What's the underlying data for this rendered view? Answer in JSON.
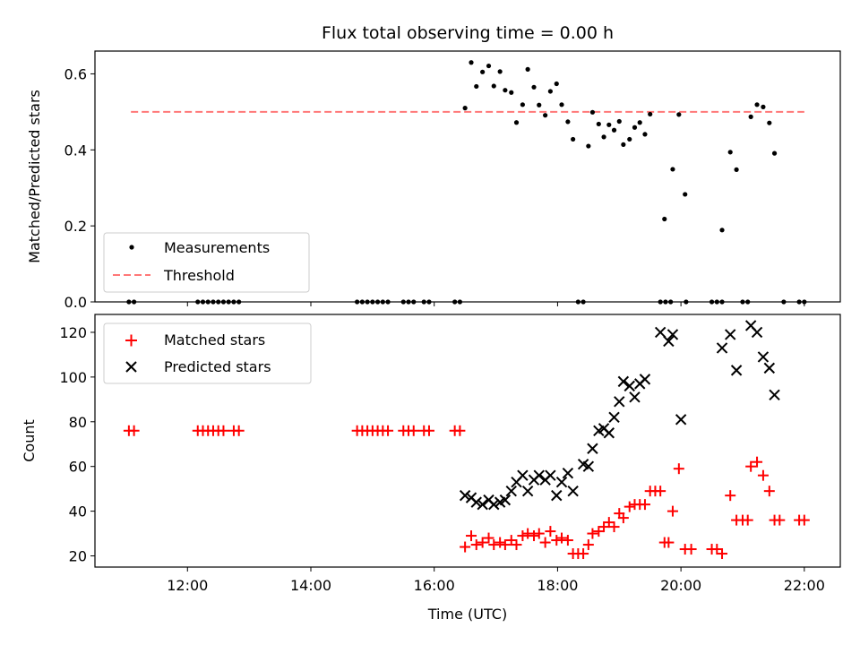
{
  "chart_data": [
    {
      "type": "scatter",
      "title": "Flux total observing time = 0.00 h",
      "xlabel": "",
      "ylabel": "Matched/Predicted stars",
      "xlim": [
        "10:30",
        "22:35"
      ],
      "ylim": [
        0,
        0.66
      ],
      "yticks": [
        0.0,
        0.2,
        0.4,
        0.6
      ],
      "ytick_labels": [
        "0.0",
        "0.2",
        "0.4",
        "0.6"
      ],
      "legend_position": "lower-left",
      "grid": false,
      "series": [
        {
          "name": "Measurements",
          "marker": "dot",
          "color": "#000000",
          "points": [
            [
              "11:03",
              0.0
            ],
            [
              "11:08",
              0.0
            ],
            [
              "12:10",
              0.0
            ],
            [
              "12:15",
              0.0
            ],
            [
              "12:20",
              0.0
            ],
            [
              "12:25",
              0.0
            ],
            [
              "12:30",
              0.0
            ],
            [
              "12:35",
              0.0
            ],
            [
              "12:40",
              0.0
            ],
            [
              "12:45",
              0.0
            ],
            [
              "12:50",
              0.0
            ],
            [
              "14:45",
              0.0
            ],
            [
              "14:50",
              0.0
            ],
            [
              "14:55",
              0.0
            ],
            [
              "15:00",
              0.0
            ],
            [
              "15:05",
              0.0
            ],
            [
              "15:10",
              0.0
            ],
            [
              "15:15",
              0.0
            ],
            [
              "15:30",
              0.0
            ],
            [
              "15:35",
              0.0
            ],
            [
              "15:40",
              0.0
            ],
            [
              "15:50",
              0.0
            ],
            [
              "15:55",
              0.0
            ],
            [
              "16:20",
              0.0
            ],
            [
              "16:25",
              0.0
            ],
            [
              "16:30",
              0.51
            ],
            [
              "16:36",
              0.63
            ],
            [
              "16:41",
              0.567
            ],
            [
              "16:47",
              0.605
            ],
            [
              "16:53",
              0.621
            ],
            [
              "16:58",
              0.568
            ],
            [
              "17:04",
              0.606
            ],
            [
              "17:09",
              0.557
            ],
            [
              "17:15",
              0.551
            ],
            [
              "17:20",
              0.472
            ],
            [
              "17:26",
              0.519
            ],
            [
              "17:31",
              0.612
            ],
            [
              "17:37",
              0.565
            ],
            [
              "17:42",
              0.518
            ],
            [
              "17:48",
              0.491
            ],
            [
              "17:53",
              0.554
            ],
            [
              "17:59",
              0.574
            ],
            [
              "18:04",
              0.519
            ],
            [
              "18:10",
              0.474
            ],
            [
              "18:15",
              0.428
            ],
            [
              "18:20",
              0.0
            ],
            [
              "18:25",
              0.0
            ],
            [
              "18:30",
              0.41
            ],
            [
              "18:34",
              0.499
            ],
            [
              "18:40",
              0.468
            ],
            [
              "18:45",
              0.434
            ],
            [
              "18:50",
              0.466
            ],
            [
              "18:55",
              0.452
            ],
            [
              "19:00",
              0.475
            ],
            [
              "19:04",
              0.414
            ],
            [
              "19:10",
              0.428
            ],
            [
              "19:15",
              0.459
            ],
            [
              "19:20",
              0.472
            ],
            [
              "19:25",
              0.441
            ],
            [
              "19:30",
              0.494
            ],
            [
              "19:40",
              0.0
            ],
            [
              "19:45",
              0.0
            ],
            [
              "19:50",
              0.0
            ],
            [
              "19:44",
              0.218
            ],
            [
              "19:52",
              0.349
            ],
            [
              "19:58",
              0.493
            ],
            [
              "20:04",
              0.283
            ],
            [
              "20:05",
              0.0
            ],
            [
              "20:30",
              0.0
            ],
            [
              "20:35",
              0.0
            ],
            [
              "20:40",
              0.0
            ],
            [
              "20:40",
              0.189
            ],
            [
              "20:48",
              0.394
            ],
            [
              "20:54",
              0.348
            ],
            [
              "21:00",
              0.0
            ],
            [
              "21:05",
              0.0
            ],
            [
              "21:08",
              0.487
            ],
            [
              "21:14",
              0.519
            ],
            [
              "21:20",
              0.513
            ],
            [
              "21:26",
              0.471
            ],
            [
              "21:31",
              0.391
            ],
            [
              "21:40",
              0.0
            ],
            [
              "21:55",
              0.0
            ],
            [
              "22:00",
              0.0
            ]
          ]
        },
        {
          "name": "Threshold",
          "style": "dashed",
          "color": "#ff7777",
          "points": [
            [
              "11:05",
              0.5
            ],
            [
              "22:00",
              0.5
            ]
          ]
        }
      ]
    },
    {
      "type": "scatter",
      "title": "",
      "xlabel": "Time (UTC)",
      "ylabel": "Count",
      "xlim": [
        "10:30",
        "22:35"
      ],
      "ylim": [
        15,
        128
      ],
      "xticks": [
        "12:00",
        "14:00",
        "16:00",
        "18:00",
        "20:00",
        "22:00"
      ],
      "yticks": [
        20,
        40,
        60,
        80,
        100,
        120
      ],
      "ytick_labels": [
        "20",
        "40",
        "60",
        "80",
        "100",
        "120"
      ],
      "legend_position": "upper-left",
      "grid": false,
      "series": [
        {
          "name": "Matched stars",
          "marker": "plus",
          "color": "#ff0000",
          "points": [
            [
              "11:03",
              76
            ],
            [
              "11:08",
              76
            ],
            [
              "12:10",
              76
            ],
            [
              "12:15",
              76
            ],
            [
              "12:20",
              76
            ],
            [
              "12:25",
              76
            ],
            [
              "12:30",
              76
            ],
            [
              "12:35",
              76
            ],
            [
              "12:45",
              76
            ],
            [
              "12:50",
              76
            ],
            [
              "14:45",
              76
            ],
            [
              "14:50",
              76
            ],
            [
              "14:55",
              76
            ],
            [
              "15:00",
              76
            ],
            [
              "15:05",
              76
            ],
            [
              "15:10",
              76
            ],
            [
              "15:15",
              76
            ],
            [
              "15:30",
              76
            ],
            [
              "15:35",
              76
            ],
            [
              "15:40",
              76
            ],
            [
              "15:50",
              76
            ],
            [
              "15:55",
              76
            ],
            [
              "16:20",
              76
            ],
            [
              "16:25",
              76
            ],
            [
              "16:30",
              24
            ],
            [
              "16:36",
              29
            ],
            [
              "16:41",
              25
            ],
            [
              "16:47",
              26
            ],
            [
              "16:53",
              28
            ],
            [
              "16:58",
              25
            ],
            [
              "17:04",
              26
            ],
            [
              "17:09",
              25
            ],
            [
              "17:15",
              27
            ],
            [
              "17:20",
              25
            ],
            [
              "17:26",
              29
            ],
            [
              "17:31",
              30
            ],
            [
              "17:37",
              29
            ],
            [
              "17:42",
              30
            ],
            [
              "17:48",
              26
            ],
            [
              "17:53",
              31
            ],
            [
              "17:59",
              27
            ],
            [
              "18:04",
              28
            ],
            [
              "18:10",
              27
            ],
            [
              "18:15",
              21
            ],
            [
              "18:20",
              21
            ],
            [
              "18:25",
              21
            ],
            [
              "18:30",
              25
            ],
            [
              "18:34",
              30
            ],
            [
              "18:40",
              31
            ],
            [
              "18:45",
              33
            ],
            [
              "18:50",
              35
            ],
            [
              "18:55",
              33
            ],
            [
              "19:00",
              39
            ],
            [
              "19:04",
              37
            ],
            [
              "19:10",
              42
            ],
            [
              "19:15",
              43
            ],
            [
              "19:20",
              43
            ],
            [
              "19:25",
              43
            ],
            [
              "19:30",
              49
            ],
            [
              "19:35",
              49
            ],
            [
              "19:40",
              49
            ],
            [
              "19:44",
              26
            ],
            [
              "19:48",
              26
            ],
            [
              "19:52",
              40
            ],
            [
              "19:58",
              59
            ],
            [
              "20:04",
              23
            ],
            [
              "20:10",
              23
            ],
            [
              "20:30",
              23
            ],
            [
              "20:35",
              23
            ],
            [
              "20:40",
              21
            ],
            [
              "20:48",
              47
            ],
            [
              "20:54",
              36
            ],
            [
              "21:00",
              36
            ],
            [
              "21:05",
              36
            ],
            [
              "21:08",
              60
            ],
            [
              "21:14",
              62
            ],
            [
              "21:20",
              56
            ],
            [
              "21:26",
              49
            ],
            [
              "21:31",
              36
            ],
            [
              "21:36",
              36
            ],
            [
              "21:55",
              36
            ],
            [
              "22:00",
              36
            ]
          ]
        },
        {
          "name": "Predicted stars",
          "marker": "x",
          "color": "#000000",
          "points": [
            [
              "16:30",
              47
            ],
            [
              "16:36",
              46
            ],
            [
              "16:41",
              44
            ],
            [
              "16:47",
              43
            ],
            [
              "16:53",
              45
            ],
            [
              "16:58",
              43
            ],
            [
              "17:04",
              44
            ],
            [
              "17:09",
              45
            ],
            [
              "17:15",
              49
            ],
            [
              "17:20",
              53
            ],
            [
              "17:26",
              56
            ],
            [
              "17:31",
              49
            ],
            [
              "17:37",
              54
            ],
            [
              "17:42",
              56
            ],
            [
              "17:48",
              54
            ],
            [
              "17:53",
              56
            ],
            [
              "17:59",
              47
            ],
            [
              "18:04",
              53
            ],
            [
              "18:10",
              57
            ],
            [
              "18:15",
              49
            ],
            [
              "18:25",
              61
            ],
            [
              "18:30",
              60
            ],
            [
              "18:34",
              68
            ],
            [
              "18:40",
              76
            ],
            [
              "18:45",
              77
            ],
            [
              "18:50",
              75
            ],
            [
              "18:55",
              82
            ],
            [
              "19:00",
              89
            ],
            [
              "19:04",
              98
            ],
            [
              "19:10",
              96
            ],
            [
              "19:15",
              91
            ],
            [
              "19:20",
              97
            ],
            [
              "19:25",
              99
            ],
            [
              "19:40",
              120
            ],
            [
              "19:48",
              116
            ],
            [
              "19:52",
              119
            ],
            [
              "20:00",
              81
            ],
            [
              "20:40",
              113
            ],
            [
              "20:48",
              119
            ],
            [
              "20:54",
              103
            ],
            [
              "21:08",
              123
            ],
            [
              "21:14",
              120
            ],
            [
              "21:20",
              109
            ],
            [
              "21:26",
              104
            ],
            [
              "21:31",
              92
            ]
          ]
        }
      ]
    }
  ]
}
